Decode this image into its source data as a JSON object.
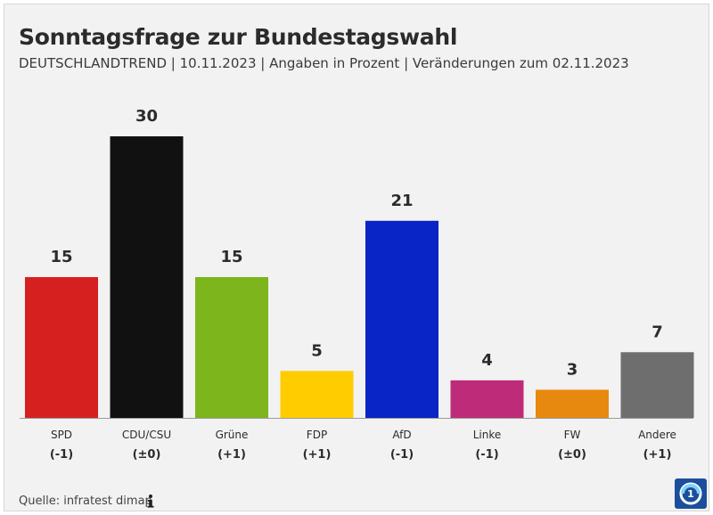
{
  "chart_data": {
    "type": "bar",
    "title": "Sonntagsfrage zur Bundestagswahl",
    "subtitle": "DEUTSCHLANDTREND | 10.11.2023 | Angaben in Prozent | Veränderungen zum 02.11.2023",
    "categories": [
      "SPD",
      "CDU/CSU",
      "Grüne",
      "FDP",
      "AfD",
      "Linke",
      "FW",
      "Andere"
    ],
    "values": [
      15,
      30,
      15,
      5,
      21,
      4,
      3,
      7
    ],
    "changes": [
      "(-1)",
      "(±0)",
      "(+1)",
      "(+1)",
      "(-1)",
      "(-1)",
      "(±0)",
      "(+1)"
    ],
    "colors": [
      "#d62020",
      "#111111",
      "#7cb51c",
      "#ffcc00",
      "#0a25c6",
      "#be2c79",
      "#e8890f",
      "#6e6e6e"
    ],
    "ylim": [
      0,
      30
    ],
    "xlabel": "",
    "ylabel": "",
    "grid": false,
    "source": "Quelle: infratest dimap"
  },
  "icons": {
    "info": "info-icon",
    "logo": "ard-logo-icon"
  }
}
